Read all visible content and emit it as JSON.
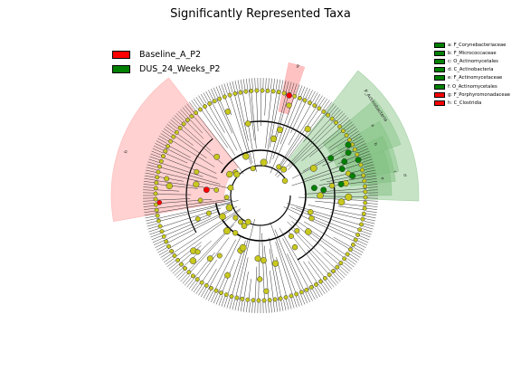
{
  "title": "Significantly Represented Taxa",
  "colors": {
    "group_a": "#ff0000",
    "group_b": "#008000",
    "node_neutral": "#c8c81e",
    "shade_a": "#ff9999",
    "shade_b": "#80c080"
  },
  "group_legend": [
    {
      "label": "Baseline_A_P2",
      "color": "#ff0000"
    },
    {
      "label": "DUS_24_Weeks_P2",
      "color": "#008000"
    }
  ],
  "clade_legend": [
    {
      "label": "a: F_Corynebacteriaceae",
      "color": "#008000"
    },
    {
      "label": "b: F_Micrococcaceae",
      "color": "#008000"
    },
    {
      "label": "c: O_Actinomycetales",
      "color": "#008000"
    },
    {
      "label": "d: C_Actinobacteria",
      "color": "#008000"
    },
    {
      "label": "e: F_Actinomycetaceae",
      "color": "#008000"
    },
    {
      "label": "f: O_Actinomycetales",
      "color": "#008000"
    },
    {
      "label": "g: F_Porphyromonadaceae",
      "color": "#ff0000"
    },
    {
      "label": "h: C_Clostridia",
      "color": "#ff0000"
    }
  ],
  "clade_labels": [
    "g",
    "P_Actinobacteria",
    "a",
    "b",
    "c",
    "d",
    "e",
    "h"
  ]
}
